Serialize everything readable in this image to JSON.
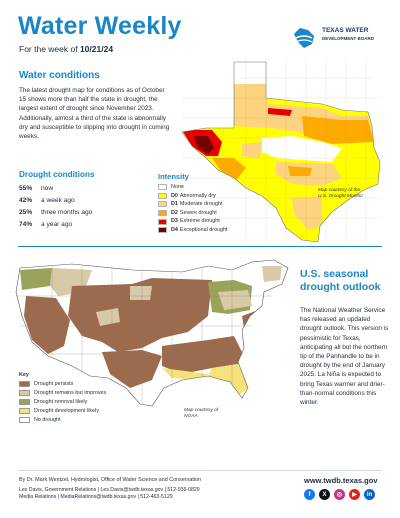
{
  "header": {
    "title": "Water Weekly",
    "subtitle_prefix": "For the week of ",
    "subtitle_date": "10/21/24",
    "logo_line1": "TEXAS WATER",
    "logo_line2": "DEVELOPMENT BOARD"
  },
  "water_conditions": {
    "heading": "Water conditions",
    "body": "The latest drought map for conditions as of October 15 shows more than half the state in drought, the largest extent of drought since November 2023. Additionally, almost a third of the state is abnormally dry and susceptible to slipping into drought in coming weeks."
  },
  "drought_conditions": {
    "heading": "Drought conditions",
    "items": [
      {
        "pct": "55%",
        "label": "now"
      },
      {
        "pct": "42%",
        "label": "a week ago"
      },
      {
        "pct": "25%",
        "label": "three months ago"
      },
      {
        "pct": "74%",
        "label": "a year ago"
      }
    ]
  },
  "intensity": {
    "heading": "Intensity",
    "items": [
      {
        "code": "",
        "label": "None",
        "color": "#ffffff"
      },
      {
        "code": "D0",
        "label": "Abnormally dry",
        "color": "#ffff00"
      },
      {
        "code": "D1",
        "label": "Moderate drought",
        "color": "#fcd37f"
      },
      {
        "code": "D2",
        "label": "Severe drought",
        "color": "#ffaa00"
      },
      {
        "code": "D3",
        "label": "Extreme drought",
        "color": "#e60000"
      },
      {
        "code": "D4",
        "label": "Exceptional drought",
        "color": "#730000"
      }
    ]
  },
  "tx_map_credit": {
    "line1": "Map courtesy of the",
    "line2": "U.S. Drought Monitor"
  },
  "seasonal_outlook": {
    "heading_line1": "U.S. seasonal",
    "heading_line2": "drought outlook",
    "body": "The National Weather Service has released an updated drought outlook. This version is pessimistic for Texas, anticipating all but the northern tip of the Panhandle to be in drought by the end of January 2025. La Niña is expected to bring Texas warmer and drier-than-normal conditions this winter."
  },
  "outlook_key": {
    "heading": "Key",
    "items": [
      {
        "label": "Drought persists",
        "color": "#9c6b4e"
      },
      {
        "label": "Drought remains but improves",
        "color": "#d8c9a7"
      },
      {
        "label": "Drought removal likely",
        "color": "#9aa35a"
      },
      {
        "label": "Drought development likely",
        "color": "#f6e27a"
      },
      {
        "label": "No drought",
        "color": "#ffffff"
      }
    ]
  },
  "us_map_credit": {
    "line1": "Map courtesy of",
    "line2": "NOAA"
  },
  "footer": {
    "author": "By Dr. Mark Wentzel, Hydrologist, Office of Water Science and Conservation",
    "contact1": "Les Davis, Government Relations | Les.Davis@twdb.texas.gov | 512-936-0829",
    "contact2": "Media Relations | MediaRelations@twdb.texas.gov | 512-463-5129",
    "url": "www.twdb.texas.gov"
  },
  "socials": [
    {
      "icon": "facebook-icon",
      "glyph": "f",
      "color": "#1877f2"
    },
    {
      "icon": "x-icon",
      "glyph": "X",
      "color": "#111111"
    },
    {
      "icon": "instagram-icon",
      "glyph": "◎",
      "color": "#c13584"
    },
    {
      "icon": "youtube-icon",
      "glyph": "▶",
      "color": "#e62117"
    },
    {
      "icon": "linkedin-icon",
      "glyph": "in",
      "color": "#0a66c2"
    }
  ]
}
